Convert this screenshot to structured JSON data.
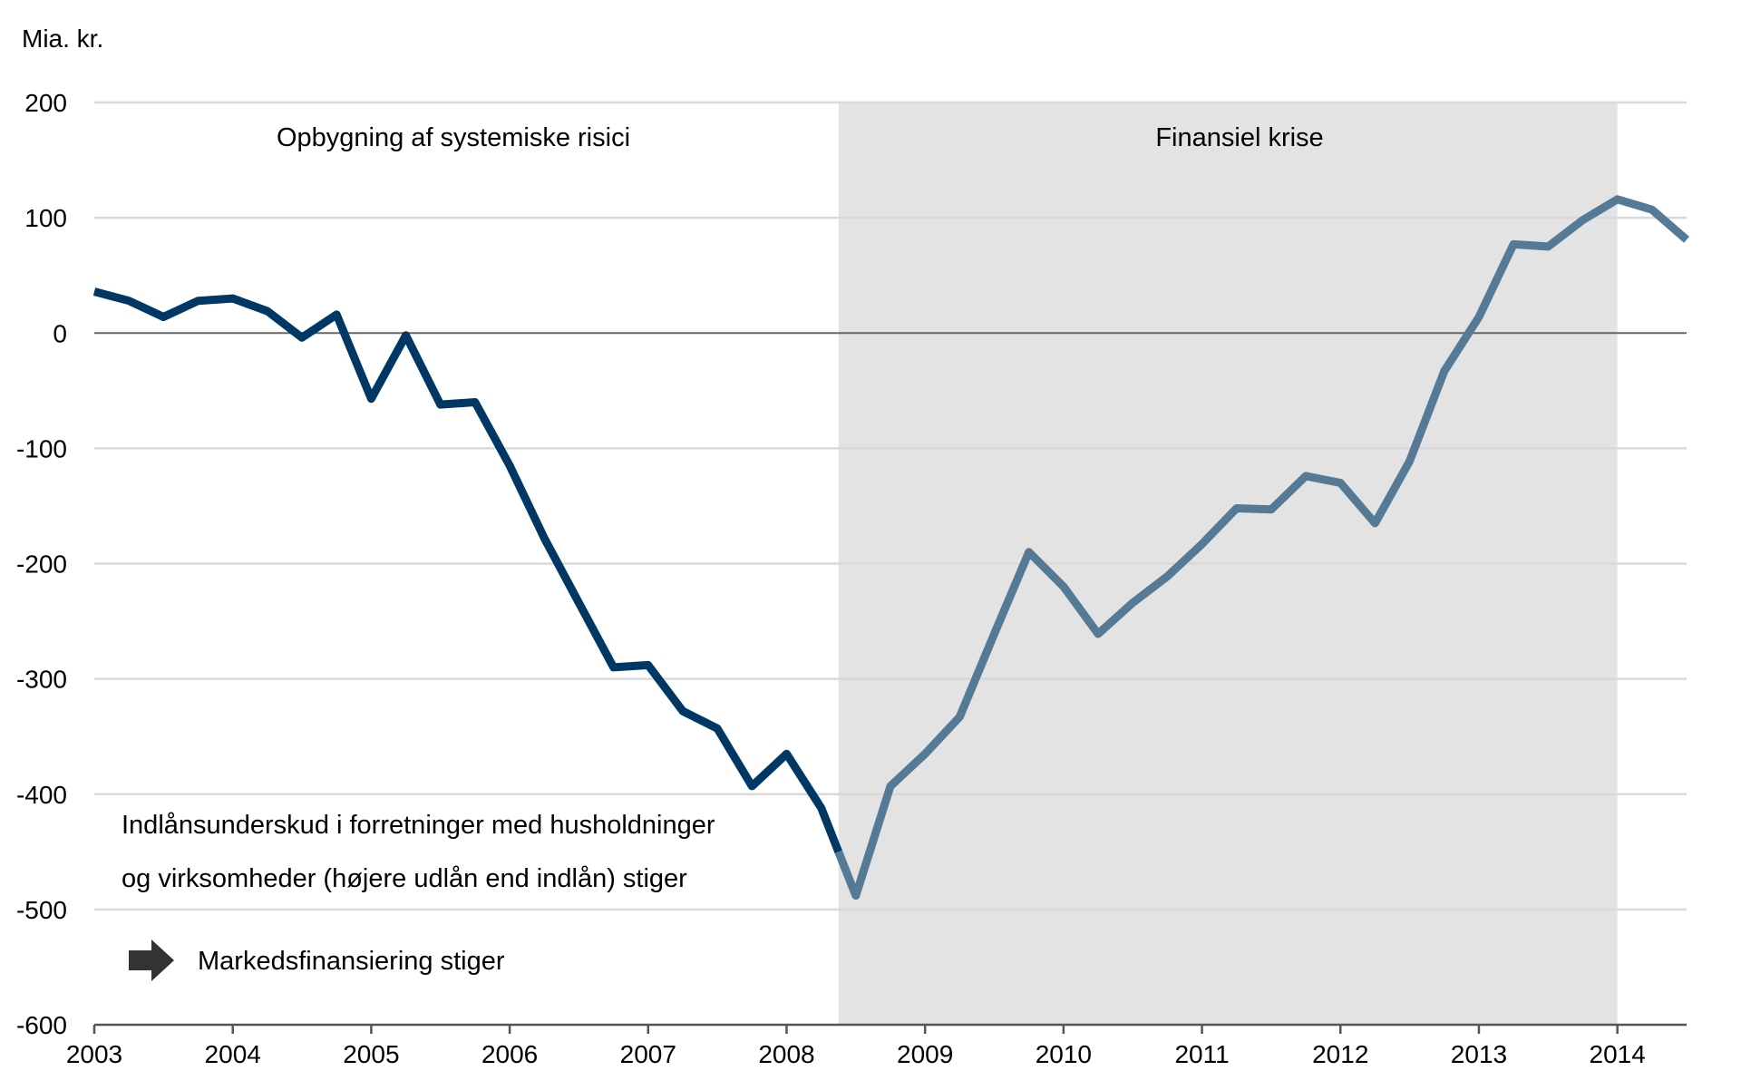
{
  "chart_data": {
    "type": "line",
    "ylabel": "Mia. kr.",
    "ylim": [
      -600,
      200
    ],
    "yticks": [
      200,
      100,
      0,
      -100,
      -200,
      -300,
      -400,
      -500,
      -600
    ],
    "xlim": [
      2003,
      2014.5
    ],
    "xticks": [
      "2003",
      "2004",
      "2005",
      "2006",
      "2007",
      "2008",
      "2009",
      "2010",
      "2011",
      "2012",
      "2013",
      "2014"
    ],
    "grid": true,
    "shaded_period": {
      "start": 2008.375,
      "end": 2014.0,
      "color": "#e3e3e3",
      "label": "Finansiel krise"
    },
    "series": [
      {
        "color_before": "#003865",
        "color_during": "#557a96",
        "x": [
          2003.0,
          2003.25,
          2003.5,
          2003.75,
          2004.0,
          2004.25,
          2004.5,
          2004.75,
          2005.0,
          2005.25,
          2005.5,
          2005.75,
          2006.0,
          2006.25,
          2006.5,
          2006.75,
          2007.0,
          2007.25,
          2007.5,
          2007.75,
          2008.0,
          2008.25,
          2008.375,
          2008.5,
          2008.75,
          2009.0,
          2009.25,
          2009.5,
          2009.75,
          2010.0,
          2010.25,
          2010.5,
          2010.75,
          2011.0,
          2011.25,
          2011.5,
          2011.75,
          2012.0,
          2012.25,
          2012.5,
          2012.75,
          2013.0,
          2013.25,
          2013.5,
          2013.75,
          2014.0,
          2014.25,
          2014.5
        ],
        "y": [
          36,
          28,
          14,
          28,
          30,
          19,
          -4,
          16,
          -57,
          -2,
          -62,
          -60,
          -115,
          -178,
          -234,
          -290,
          -288,
          -328,
          -343,
          -393,
          -365,
          -412,
          -450,
          -488,
          -393,
          -365,
          -333,
          -261,
          -190,
          -220,
          -261,
          -234,
          -211,
          -183,
          -152,
          -153,
          -124,
          -130,
          -165,
          -111,
          -33,
          14,
          77,
          75,
          98,
          116,
          107,
          81
        ]
      }
    ],
    "annotations": {
      "buildup": "Opbygning af systemiske risici",
      "crisis": "Finansiel krise",
      "deficit_line1": "Indlånsunderskud i forretninger med husholdninger",
      "deficit_line2": "og virksomheder (højere udlån end indlån) stiger",
      "market": "Markedsfinansiering stiger",
      "arrow_icon": "arrow-right-icon"
    }
  }
}
